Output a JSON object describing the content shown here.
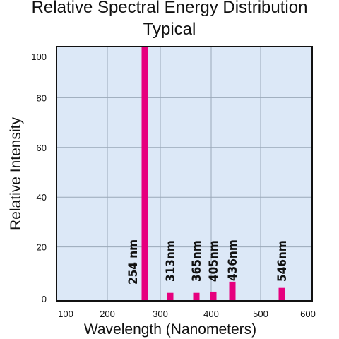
{
  "chart_data": {
    "type": "bar",
    "title": "Relative Spectral Energy Distribution",
    "subtitle": "Typical",
    "xlabel": "Wavelength (Nanometers)",
    "ylabel": "Relative Intensity",
    "xlim": [
      100,
      600
    ],
    "ylim": [
      0,
      100
    ],
    "x_ticks": [
      "100",
      "200",
      "300",
      "400",
      "500",
      "600"
    ],
    "y_ticks": [
      "0",
      "20",
      "40",
      "60",
      "80",
      "100"
    ],
    "grid": true,
    "colors": {
      "bar": "#e6007e",
      "plot_bg": "#dce8f7",
      "grid": "#9aa8b8"
    },
    "bars": [
      {
        "label": "254 nm",
        "value": 100
      },
      {
        "label": "313nm",
        "value": 1.5
      },
      {
        "label": "365nm",
        "value": 1.5
      },
      {
        "label": "405nm",
        "value": 2
      },
      {
        "label": "436nm",
        "value": 6
      },
      {
        "label": "546nm",
        "value": 3.5
      }
    ]
  }
}
